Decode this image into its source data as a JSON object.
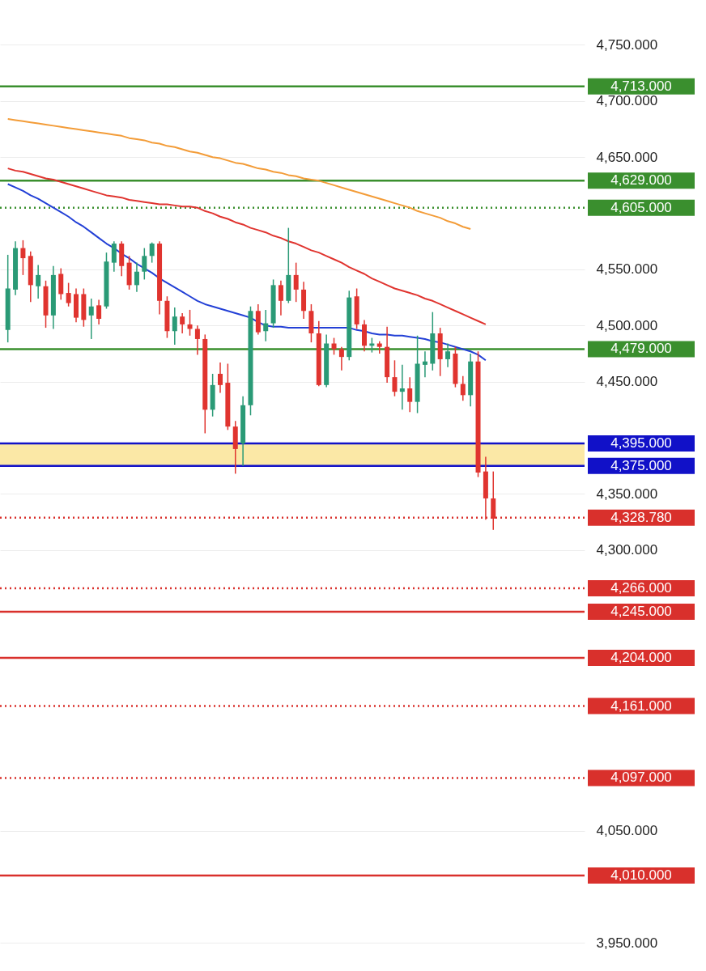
{
  "chart_data": {
    "type": "candlestick",
    "categories": [
      null,
      null,
      null,
      null,
      null,
      null,
      null,
      null,
      null,
      null,
      null,
      null,
      null,
      null,
      null,
      null,
      null,
      null,
      null,
      null,
      null,
      null,
      null,
      null,
      null,
      null,
      null,
      null,
      null,
      null,
      null,
      null,
      null,
      null,
      null,
      null,
      null,
      null,
      null,
      null,
      null,
      null,
      null,
      null,
      null,
      null,
      null,
      null,
      null,
      null,
      null,
      null,
      null,
      null,
      null,
      null,
      null,
      null,
      null,
      null,
      null,
      null,
      null,
      null,
      null
    ],
    "ohlc": [
      [
        4496,
        4563,
        4485,
        4533
      ],
      [
        4532,
        4575,
        4527,
        4569
      ],
      [
        4569,
        4576,
        4545,
        4560
      ],
      [
        4562,
        4566,
        4521,
        4536
      ],
      [
        4535,
        4554,
        4524,
        4545
      ],
      [
        4535,
        4540,
        4498,
        4509
      ],
      [
        4509,
        4553,
        4497,
        4545
      ],
      [
        4546,
        4551,
        4523,
        4528
      ],
      [
        4529,
        4538,
        4517,
        4520
      ],
      [
        4528,
        4533,
        4503,
        4507
      ],
      [
        4528,
        4533,
        4499,
        4505
      ],
      [
        4509,
        4524,
        4488,
        4517
      ],
      [
        4518,
        4523,
        4501,
        4506
      ],
      [
        4517,
        4565,
        4515,
        4557
      ],
      [
        4556,
        4575,
        4548,
        4573
      ],
      [
        4573,
        4575,
        4544,
        4553
      ],
      [
        4556,
        4562,
        4532,
        4536
      ],
      [
        4536,
        4556,
        4530,
        4548
      ],
      [
        4548,
        4569,
        4541,
        4562
      ],
      [
        4562,
        4574,
        4556,
        4573
      ],
      [
        4573,
        4575,
        4510,
        4522
      ],
      [
        4522,
        4526,
        4489,
        4495
      ],
      [
        4495,
        4516,
        4483,
        4508
      ],
      [
        4508,
        4511,
        4493,
        4501
      ],
      [
        4501,
        4514,
        4491,
        4497
      ],
      [
        4497,
        4500,
        4474,
        4488
      ],
      [
        4488,
        4492,
        4404,
        4425
      ],
      [
        4425,
        4457,
        4419,
        4447
      ],
      [
        4457,
        4467,
        4440,
        4447
      ],
      [
        4449,
        4466,
        4407,
        4410
      ],
      [
        4410,
        4415,
        4368,
        4390
      ],
      [
        4395,
        4437,
        4375,
        4429
      ],
      [
        4429,
        4517,
        4420,
        4513
      ],
      [
        4513,
        4519,
        4492,
        4494
      ],
      [
        4495,
        4514,
        4486,
        4502
      ],
      [
        4502,
        4541,
        4498,
        4536
      ],
      [
        4536,
        4540,
        4509,
        4522
      ],
      [
        4522,
        4587,
        4520,
        4545
      ],
      [
        4545,
        4556,
        4521,
        4532
      ],
      [
        4532,
        4539,
        4506,
        4513
      ],
      [
        4513,
        4519,
        4485,
        4493
      ],
      [
        4493,
        4504,
        4446,
        4447
      ],
      [
        4447,
        4492,
        4445,
        4484
      ],
      [
        4484,
        4489,
        4474,
        4479
      ],
      [
        4479,
        4481,
        4460,
        4472
      ],
      [
        4472,
        4531,
        4469,
        4525
      ],
      [
        4526,
        4533,
        4497,
        4501
      ],
      [
        4501,
        4505,
        4477,
        4482
      ],
      [
        4482,
        4489,
        4476,
        4484
      ],
      [
        4484,
        4486,
        4475,
        4481
      ],
      [
        4481,
        4499,
        4449,
        4454
      ],
      [
        4454,
        4469,
        4437,
        4441
      ],
      [
        4441,
        4465,
        4425,
        4444
      ],
      [
        4444,
        4454,
        4423,
        4432
      ],
      [
        4432,
        4491,
        4422,
        4466
      ],
      [
        4465,
        4477,
        4454,
        4468
      ],
      [
        4466,
        4512,
        4460,
        4493
      ],
      [
        4493,
        4498,
        4455,
        4470
      ],
      [
        4470,
        4484,
        4463,
        4477
      ],
      [
        4475,
        4481,
        4445,
        4448
      ],
      [
        4448,
        4455,
        4433,
        4438
      ],
      [
        4438,
        4475,
        4428,
        4468
      ],
      [
        4468,
        4477,
        4365,
        4369
      ],
      [
        4370,
        4383,
        4327,
        4346
      ],
      [
        4346,
        4370,
        4318,
        4328
      ]
    ],
    "series": [
      {
        "type": "line",
        "color": "#f39c38",
        "values": [
          4684,
          4683,
          4682,
          4681,
          4680,
          4679,
          4678,
          4677,
          4676,
          4675,
          4674,
          4673,
          4672,
          4671,
          4670,
          4669,
          4667,
          4666,
          4665,
          4663,
          4662,
          4660,
          4659,
          4657,
          4655,
          4654,
          4652,
          4650,
          4649,
          4647,
          4645,
          4644,
          4642,
          4640,
          4639,
          4637,
          4636,
          4634,
          4633,
          4631,
          4630,
          4629,
          4627,
          4625,
          4623,
          4621,
          4619,
          4617,
          4615,
          4613,
          4611,
          4609,
          4607,
          4605,
          4602,
          4600,
          4598,
          4596,
          4593,
          4591,
          4588,
          4586,
          null,
          null,
          null
        ]
      },
      {
        "type": "line",
        "color": "#e0342f",
        "values": [
          4640,
          4638,
          4637,
          4635,
          4633,
          4631,
          4630,
          4628,
          4626,
          4624,
          4622,
          4620,
          4618,
          4616,
          4615,
          4614,
          4612,
          4611,
          4610,
          4609,
          4608,
          4608,
          4607,
          4606,
          4606,
          4605,
          4602,
          4600,
          4597,
          4595,
          4592,
          4590,
          4587,
          4585,
          4583,
          4580,
          4578,
          4575,
          4573,
          4570,
          4567,
          4565,
          4562,
          4559,
          4556,
          4552,
          4549,
          4546,
          4542,
          4539,
          4536,
          4533,
          4531,
          4529,
          4527,
          4524,
          4522,
          4519,
          4516,
          4513,
          4510,
          4507,
          4504,
          4501,
          null
        ]
      },
      {
        "type": "line",
        "color": "#2340d6",
        "values": [
          4626,
          4623,
          4620,
          4616,
          4613,
          4609,
          4605,
          4601,
          4597,
          4592,
          4588,
          4583,
          4578,
          4573,
          4569,
          4564,
          4560,
          4555,
          4551,
          4547,
          4542,
          4538,
          4534,
          4530,
          4526,
          4522,
          4519,
          4517,
          4515,
          4513,
          4511,
          4509,
          4507,
          4503,
          4500,
          4499,
          4499,
          4498,
          4498,
          4498,
          4498,
          4498,
          4498,
          4498,
          4498,
          4498,
          4496,
          4495,
          4493,
          4492,
          4492,
          4491,
          4491,
          4490,
          4489,
          4488,
          4486,
          4485,
          4483,
          4481,
          4479,
          4477,
          4474,
          4469,
          null
        ]
      }
    ],
    "ylim": [
      3925,
      4790
    ],
    "yticks": [
      {
        "value": 3950,
        "label": "3,950.000"
      },
      {
        "value": 4050,
        "label": "4,050.000"
      },
      {
        "value": 4300,
        "label": "4,300.000"
      },
      {
        "value": 4350,
        "label": "4,350.000"
      },
      {
        "value": 4450,
        "label": "4,450.000"
      },
      {
        "value": 4500,
        "label": "4,500.000"
      },
      {
        "value": 4550,
        "label": "4,550.000"
      },
      {
        "value": 4650,
        "label": "4,650.000"
      },
      {
        "value": 4700,
        "label": "4,700.000"
      },
      {
        "value": 4750,
        "label": "4,750.000"
      }
    ],
    "tick_labels": "y",
    "grid": "y",
    "bands": [
      {
        "axis": "y",
        "from": 4375,
        "to": 4395,
        "color": "#fbe8a6"
      }
    ],
    "ref_lines": [
      {
        "axis": "y",
        "value": 4713,
        "label": "4,713.000",
        "color": "#3a8f2e",
        "line_style": "solid"
      },
      {
        "axis": "y",
        "value": 4629,
        "label": "4,629.000",
        "color": "#3a8f2e",
        "line_style": "solid"
      },
      {
        "axis": "y",
        "value": 4605,
        "label": "4,605.000",
        "color": "#3a8f2e",
        "line_style": "dotted"
      },
      {
        "axis": "y",
        "value": 4479,
        "label": "4,479.000",
        "color": "#3a8f2e",
        "line_style": "solid"
      },
      {
        "axis": "y",
        "value": 4395,
        "label": "4,395.000",
        "color": "#1111c8",
        "line_style": "solid"
      },
      {
        "axis": "y",
        "value": 4375,
        "label": "4,375.000",
        "color": "#1111c8",
        "line_style": "solid"
      },
      {
        "axis": "y",
        "value": 4328.78,
        "label": "4,328.780",
        "color": "#d9302c",
        "line_style": "dotted"
      },
      {
        "axis": "y",
        "value": 4266,
        "label": "4,266.000",
        "color": "#d9302c",
        "line_style": "dotted"
      },
      {
        "axis": "y",
        "value": 4245,
        "label": "4,245.000",
        "color": "#d9302c",
        "line_style": "solid"
      },
      {
        "axis": "y",
        "value": 4204,
        "label": "4,204.000",
        "color": "#d9302c",
        "line_style": "solid"
      },
      {
        "axis": "y",
        "value": 4161,
        "label": "4,161.000",
        "color": "#d9302c",
        "line_style": "dotted"
      },
      {
        "axis": "y",
        "value": 4097,
        "label": "4,097.000",
        "color": "#d9302c",
        "line_style": "dotted"
      },
      {
        "axis": "y",
        "value": 4010,
        "label": "4,010.000",
        "color": "#d9302c",
        "line_style": "solid"
      }
    ]
  }
}
